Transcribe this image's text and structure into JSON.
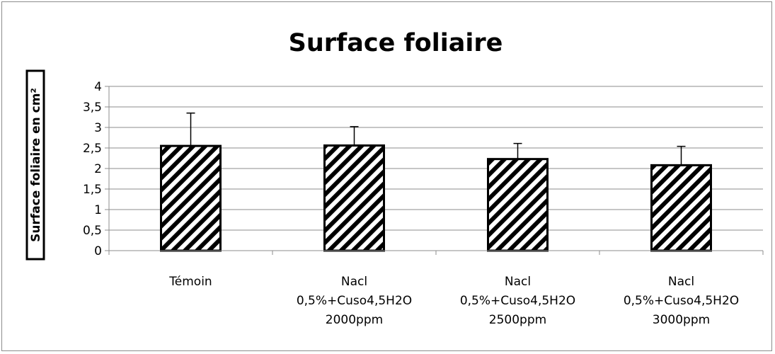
{
  "chart_data": {
    "type": "bar",
    "title": "Surface foliaire",
    "xlabel": "",
    "ylabel": "Surface foliaire en cm²",
    "ylim": [
      0,
      4
    ],
    "yticks": [
      "0",
      "0,5",
      "1",
      "1,5",
      "2",
      "2,5",
      "3",
      "3,5",
      "4"
    ],
    "ytick_values": [
      0,
      0.5,
      1,
      1.5,
      2,
      2.5,
      3,
      3.5,
      4
    ],
    "grid": true,
    "legend": "none",
    "categories": [
      [
        "Témoin"
      ],
      [
        "Nacl",
        "0,5%+Cuso4,5H2O",
        "2000ppm"
      ],
      [
        "Nacl",
        "0,5%+Cuso4,5H2O",
        "2500ppm"
      ],
      [
        "Nacl",
        "0,5%+Cuso4,5H2O",
        "3000ppm"
      ]
    ],
    "values": [
      2.55,
      2.56,
      2.23,
      2.08
    ],
    "error_upper": [
      0.8,
      0.46,
      0.38,
      0.46
    ],
    "bar_pattern": "diagonal-hatch",
    "colors": {
      "bar_fill": "#ffffff",
      "hatch": "#000000",
      "grid": "#8c8c8c",
      "axis": "#8c8c8c"
    }
  }
}
